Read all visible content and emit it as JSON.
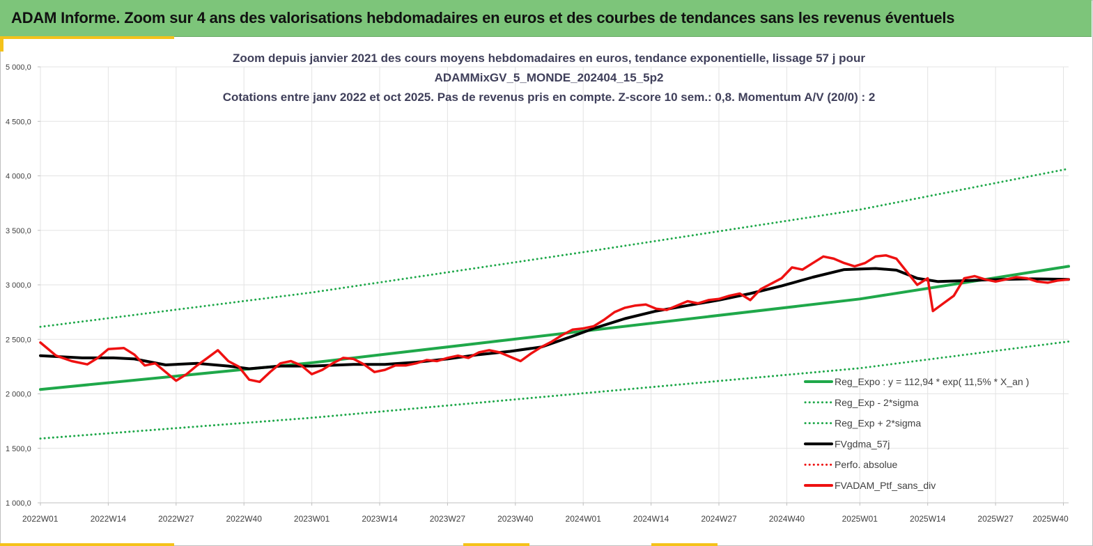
{
  "header": {
    "title": "ADAM Informe. Zoom sur 4 ans des valorisations hebdomadaires en euros et des courbes de tendances sans les revenus éventuels"
  },
  "colors": {
    "header_bg": "#7dc57a",
    "accent": "#f4c21a",
    "green": "#1fa84a",
    "black": "#000000",
    "red": "#ee1111"
  },
  "chart_data": {
    "type": "line",
    "title_lines": [
      "Zoom depuis janvier 2021 des cours moyens hebdomadaires  en euros, tendance exponentielle, lissage 57 j pour",
      "ADAMMixGV_5_MONDE_202404_15_5p2",
      "Cotations  entre janv 2022 et oct 2025. Pas de revenus pris en compte. Z-score 10 sem.: 0,8. Momentum A/V (20/0) : 2"
    ],
    "ylim": [
      1000,
      5000
    ],
    "xlim": [
      0,
      197
    ],
    "yticks": [
      {
        "value": 5000,
        "label": "5 000,0"
      },
      {
        "value": 4500,
        "label": "4 500,0"
      },
      {
        "value": 4000,
        "label": "4 000,0"
      },
      {
        "value": 3500,
        "label": "3 500,0"
      },
      {
        "value": 3000,
        "label": "3 000,0"
      },
      {
        "value": 2500,
        "label": "2 500,0"
      },
      {
        "value": 2000,
        "label": "2 000,0"
      },
      {
        "value": 1500,
        "label": "1 500,0"
      },
      {
        "value": 1000,
        "label": "1 000,0"
      }
    ],
    "xticks": [
      {
        "index": 0,
        "label": "2022W01"
      },
      {
        "index": 13,
        "label": "2022W14"
      },
      {
        "index": 26,
        "label": "2022W27"
      },
      {
        "index": 39,
        "label": "2022W40"
      },
      {
        "index": 52,
        "label": "2023W01"
      },
      {
        "index": 65,
        "label": "2023W14"
      },
      {
        "index": 78,
        "label": "2023W27"
      },
      {
        "index": 91,
        "label": "2023W40"
      },
      {
        "index": 104,
        "label": "2024W01"
      },
      {
        "index": 117,
        "label": "2024W14"
      },
      {
        "index": 130,
        "label": "2024W27"
      },
      {
        "index": 143,
        "label": "2024W40"
      },
      {
        "index": 157,
        "label": "2025W01"
      },
      {
        "index": 170,
        "label": "2025W14"
      },
      {
        "index": 183,
        "label": "2025W27"
      },
      {
        "index": 196,
        "label": "2025W40"
      }
    ],
    "grid": true,
    "legend_position": "bottom-right",
    "series": [
      {
        "name": "Reg_Expo : y = 112,94 * exp( 11,5% *  X_an )",
        "style": "solid-thick",
        "color": "#1fa84a",
        "points": [
          [
            0,
            2040
          ],
          [
            52,
            2285
          ],
          [
            104,
            2575
          ],
          [
            157,
            2870
          ],
          [
            197,
            3170
          ]
        ]
      },
      {
        "name": "Reg_Exp - 2*sigma",
        "style": "dotted",
        "color": "#1fa84a",
        "points": [
          [
            0,
            1590
          ],
          [
            52,
            1780
          ],
          [
            104,
            2005
          ],
          [
            157,
            2235
          ],
          [
            197,
            2480
          ]
        ]
      },
      {
        "name": "Reg_Exp + 2*sigma",
        "style": "dotted",
        "color": "#1fa84a",
        "points": [
          [
            0,
            2615
          ],
          [
            52,
            2930
          ],
          [
            104,
            3300
          ],
          [
            157,
            3690
          ],
          [
            197,
            4065
          ]
        ]
      },
      {
        "name": "FVgdma_57j",
        "style": "solid-thick",
        "color": "#000000",
        "points": [
          [
            0,
            2350
          ],
          [
            8,
            2330
          ],
          [
            14,
            2330
          ],
          [
            18,
            2320
          ],
          [
            24,
            2265
          ],
          [
            30,
            2280
          ],
          [
            36,
            2255
          ],
          [
            40,
            2230
          ],
          [
            46,
            2255
          ],
          [
            52,
            2255
          ],
          [
            60,
            2270
          ],
          [
            66,
            2270
          ],
          [
            72,
            2290
          ],
          [
            78,
            2320
          ],
          [
            84,
            2360
          ],
          [
            90,
            2390
          ],
          [
            96,
            2430
          ],
          [
            102,
            2530
          ],
          [
            106,
            2600
          ],
          [
            112,
            2690
          ],
          [
            118,
            2760
          ],
          [
            124,
            2810
          ],
          [
            130,
            2860
          ],
          [
            136,
            2920
          ],
          [
            142,
            2990
          ],
          [
            148,
            3070
          ],
          [
            154,
            3140
          ],
          [
            160,
            3150
          ],
          [
            164,
            3135
          ],
          [
            168,
            3060
          ],
          [
            172,
            3030
          ],
          [
            178,
            3040
          ],
          [
            184,
            3050
          ],
          [
            190,
            3055
          ],
          [
            197,
            3050
          ]
        ]
      },
      {
        "name": "Perfo. absolue",
        "style": "dotted",
        "color": "#ee1111",
        "points": []
      },
      {
        "name": "FVADAM_Ptf_sans_div",
        "style": "solid-thick",
        "color": "#ee1111",
        "points": [
          [
            0,
            2470
          ],
          [
            3,
            2350
          ],
          [
            6,
            2300
          ],
          [
            9,
            2270
          ],
          [
            11,
            2330
          ],
          [
            13,
            2410
          ],
          [
            16,
            2420
          ],
          [
            18,
            2360
          ],
          [
            20,
            2260
          ],
          [
            22,
            2280
          ],
          [
            24,
            2200
          ],
          [
            26,
            2120
          ],
          [
            28,
            2180
          ],
          [
            30,
            2260
          ],
          [
            32,
            2330
          ],
          [
            34,
            2400
          ],
          [
            36,
            2300
          ],
          [
            38,
            2250
          ],
          [
            40,
            2130
          ],
          [
            42,
            2110
          ],
          [
            44,
            2200
          ],
          [
            46,
            2280
          ],
          [
            48,
            2300
          ],
          [
            50,
            2260
          ],
          [
            52,
            2180
          ],
          [
            54,
            2220
          ],
          [
            56,
            2280
          ],
          [
            58,
            2330
          ],
          [
            60,
            2320
          ],
          [
            62,
            2270
          ],
          [
            64,
            2200
          ],
          [
            66,
            2220
          ],
          [
            68,
            2260
          ],
          [
            70,
            2260
          ],
          [
            72,
            2280
          ],
          [
            74,
            2310
          ],
          [
            76,
            2300
          ],
          [
            78,
            2330
          ],
          [
            80,
            2350
          ],
          [
            82,
            2330
          ],
          [
            84,
            2380
          ],
          [
            86,
            2400
          ],
          [
            88,
            2380
          ],
          [
            90,
            2340
          ],
          [
            92,
            2300
          ],
          [
            94,
            2370
          ],
          [
            96,
            2430
          ],
          [
            98,
            2480
          ],
          [
            100,
            2540
          ],
          [
            102,
            2590
          ],
          [
            104,
            2600
          ],
          [
            106,
            2620
          ],
          [
            108,
            2680
          ],
          [
            110,
            2750
          ],
          [
            112,
            2790
          ],
          [
            114,
            2810
          ],
          [
            116,
            2820
          ],
          [
            118,
            2780
          ],
          [
            120,
            2770
          ],
          [
            122,
            2810
          ],
          [
            124,
            2850
          ],
          [
            126,
            2830
          ],
          [
            128,
            2860
          ],
          [
            130,
            2870
          ],
          [
            132,
            2900
          ],
          [
            134,
            2920
          ],
          [
            136,
            2860
          ],
          [
            138,
            2960
          ],
          [
            140,
            3010
          ],
          [
            142,
            3060
          ],
          [
            144,
            3160
          ],
          [
            146,
            3140
          ],
          [
            148,
            3200
          ],
          [
            150,
            3260
          ],
          [
            152,
            3240
          ],
          [
            154,
            3200
          ],
          [
            156,
            3170
          ],
          [
            158,
            3200
          ],
          [
            160,
            3260
          ],
          [
            162,
            3270
          ],
          [
            164,
            3240
          ],
          [
            166,
            3120
          ],
          [
            168,
            3000
          ],
          [
            170,
            3060
          ],
          [
            171,
            2760
          ],
          [
            173,
            2830
          ],
          [
            175,
            2900
          ],
          [
            177,
            3060
          ],
          [
            179,
            3080
          ],
          [
            181,
            3050
          ],
          [
            183,
            3030
          ],
          [
            185,
            3050
          ],
          [
            187,
            3070
          ],
          [
            189,
            3060
          ],
          [
            191,
            3030
          ],
          [
            193,
            3020
          ],
          [
            195,
            3040
          ],
          [
            197,
            3050
          ]
        ]
      }
    ]
  }
}
